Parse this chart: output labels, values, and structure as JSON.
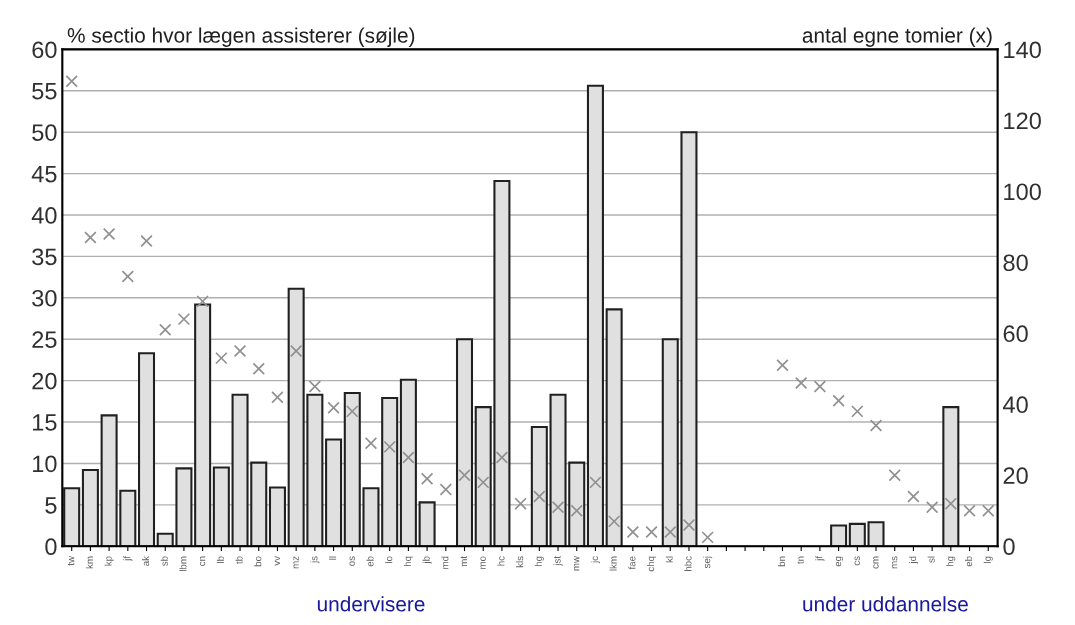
{
  "chart_data": {
    "type": "bar",
    "ylabel": "% sectio hvor lægen assisterer (søjle)",
    "y2label": "antal egne tomier (x)",
    "categories": [
      "tw",
      "km",
      "kp",
      "jf",
      "ak",
      "sb",
      "lbm",
      "cn",
      "lb",
      "tb",
      "bo",
      "vv",
      "mz",
      "js",
      "ll",
      "os",
      "eb",
      "lo",
      "hq",
      "jb",
      "md",
      "mt",
      "mo",
      "hc",
      "kls",
      "hg",
      "jst",
      "mw",
      "jc",
      "lkm",
      "fae",
      "chq",
      "kl",
      "hbc",
      "sej",
      null,
      null,
      null,
      "bn",
      "tn",
      "jf",
      "eg",
      "cs",
      "cm",
      "ms",
      "jd",
      "sl",
      "hg",
      "eb",
      "lg"
    ],
    "series": [
      {
        "color": "#e0e0e0",
        "values": [
          7,
          9.2,
          15.8,
          6.7,
          23.3,
          1.5,
          9.4,
          29.2,
          9.5,
          18.3,
          10.1,
          7.1,
          31.1,
          18.3,
          12.9,
          18.5,
          7,
          17.9,
          20.1,
          5.3,
          null,
          25,
          16.8,
          44.1,
          null,
          14.4,
          18.3,
          10.1,
          55.6,
          28.6,
          null,
          null,
          25,
          50,
          null,
          null,
          null,
          null,
          null,
          null,
          null,
          2.5,
          2.7,
          2.9,
          null,
          null,
          null,
          16.8,
          null,
          null
        ]
      },
      {
        "type": "scatter",
        "axis": "y2",
        "color": "#909090",
        "marker": "cross",
        "values": [
          131,
          87,
          88,
          76,
          86,
          61,
          64,
          69,
          53,
          55,
          50,
          42,
          55,
          45,
          39,
          38,
          29,
          28,
          25,
          19,
          16,
          20,
          18,
          25,
          12,
          14,
          11,
          10,
          18,
          7,
          4,
          4,
          4,
          6,
          2.5,
          null,
          null,
          null,
          51,
          46,
          45,
          41,
          38,
          34,
          20,
          14,
          11,
          12,
          10,
          10
        ]
      }
    ],
    "ylim": [
      0,
      60
    ],
    "yticks": [
      0,
      5,
      10,
      15,
      20,
      25,
      30,
      35,
      40,
      45,
      50,
      55,
      60
    ],
    "y2lim": [
      0,
      140
    ],
    "y2ticks": [
      0,
      20,
      40,
      60,
      80,
      100,
      120,
      140
    ],
    "grid": "y",
    "annotations": [
      "undervisere",
      "under uddannelse"
    ]
  }
}
